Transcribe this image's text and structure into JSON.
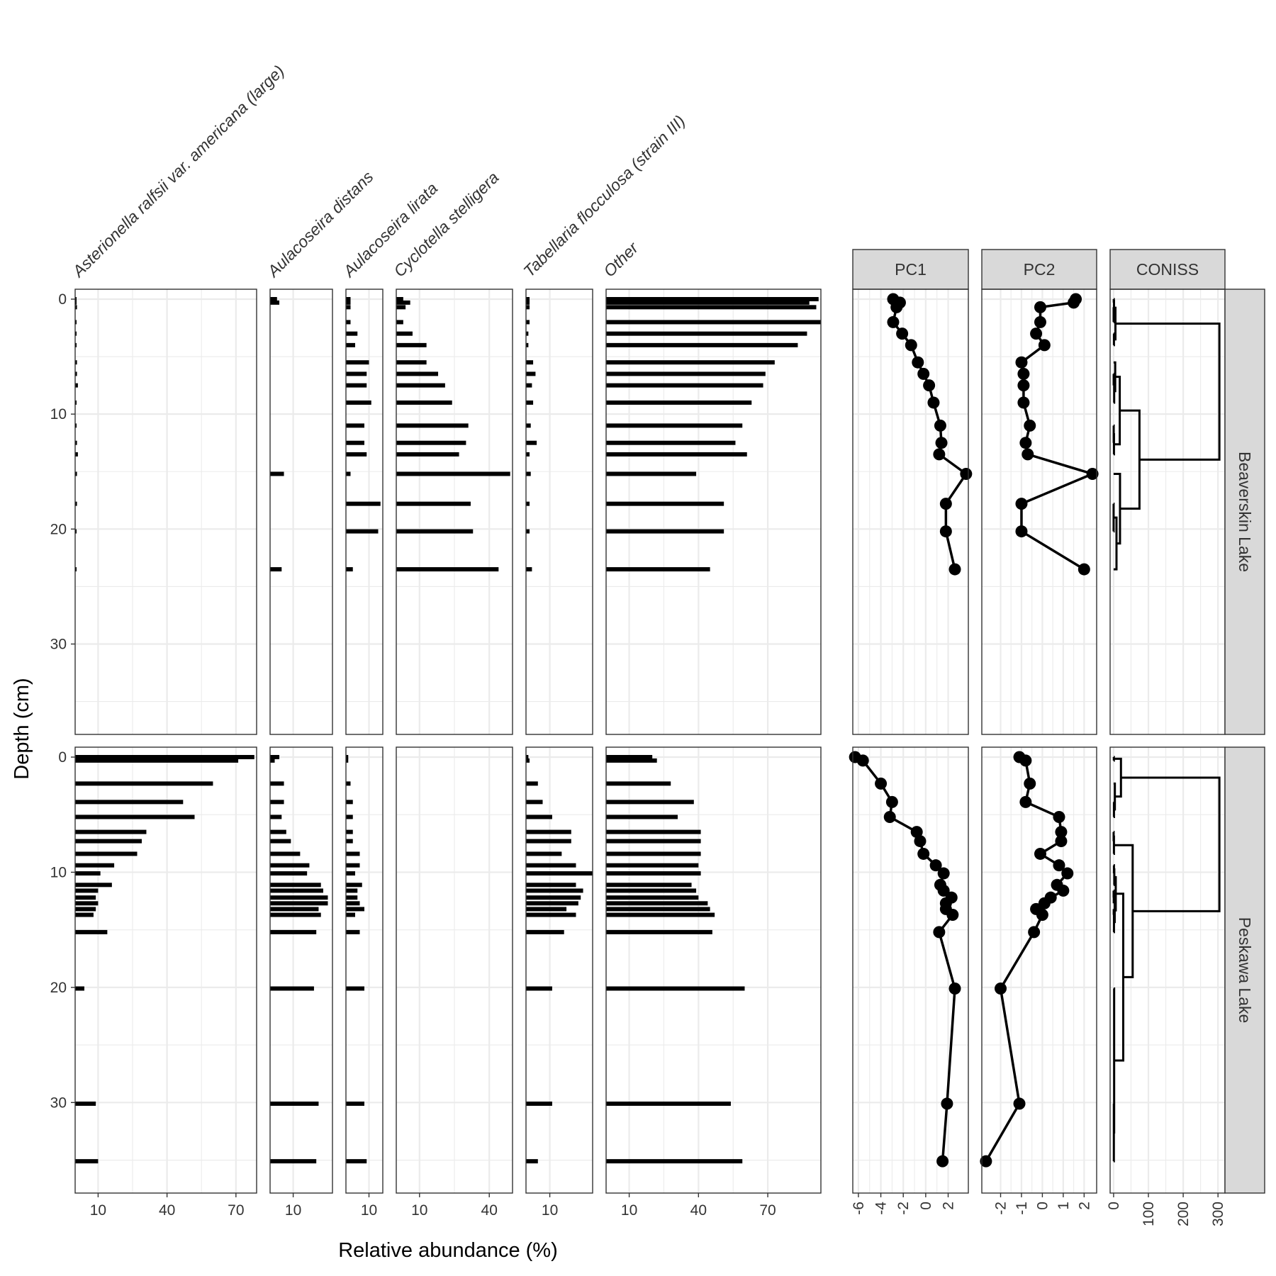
{
  "chart_data": {
    "type": "bar",
    "figure_kind": "stratigraphic diagram",
    "xlabel": "Relative abundance (%)",
    "ylabel": "Depth (cm)",
    "ylim": [
      0,
      37
    ],
    "y_reversed": true,
    "y_ticks": [
      0,
      10,
      20,
      30
    ],
    "grid": true,
    "taxa": [
      {
        "name": "Asterionella ralfsii var. americana (large)",
        "xlim": [
          0,
          79
        ],
        "ticks": [
          10,
          40,
          70
        ]
      },
      {
        "name": "Aulacoseira distans",
        "xlim": [
          0,
          27
        ],
        "ticks": [
          10
        ]
      },
      {
        "name": "Aulacoseira lirata",
        "xlim": [
          0,
          16
        ],
        "ticks": [
          10
        ]
      },
      {
        "name": "Cyclotella stelligera",
        "xlim": [
          0,
          50
        ],
        "ticks": [
          10,
          40
        ]
      },
      {
        "name": "Tabellaria flocculosa (strain III)",
        "xlim": [
          0,
          28
        ],
        "ticks": [
          10
        ]
      },
      {
        "name": "Other",
        "xlim": [
          0,
          93
        ],
        "ticks": [
          10,
          40,
          70
        ]
      }
    ],
    "sites": [
      {
        "name": "Beaverskin Lake",
        "depths": [
          0,
          0.3,
          0.7,
          2,
          3,
          4,
          5.5,
          6.5,
          7.5,
          9,
          11,
          12.5,
          13.5,
          15.2,
          17.8,
          20.2,
          23.5
        ],
        "abundance": [
          [
            0.5,
            0.5,
            0.8,
            0.2,
            0.2,
            0.2,
            0.8,
            0.8,
            1.2,
            0.3,
            0.5,
            0.8,
            1.2,
            0.8,
            0.8,
            0.5,
            0.5
          ],
          [
            3,
            4,
            0,
            0,
            0,
            0,
            0,
            0,
            0,
            0,
            0,
            0,
            0,
            6,
            0,
            0,
            5
          ],
          [
            2,
            2,
            2,
            2,
            5,
            4,
            10,
            9,
            9,
            11,
            8,
            8,
            9,
            2,
            15,
            14,
            3
          ],
          [
            3,
            6,
            4,
            3,
            7,
            13,
            13,
            18,
            21,
            24,
            31,
            30,
            27,
            49,
            32,
            33,
            44
          ],
          [
            1.5,
            1.5,
            1.5,
            1.5,
            1,
            1,
            3,
            4,
            2.5,
            3,
            2,
            4.5,
            1.5,
            2,
            1.5,
            1.5,
            2.5
          ],
          [
            92,
            88,
            91,
            93,
            87,
            83,
            73,
            69,
            68,
            63,
            59,
            56,
            61,
            39,
            51,
            51,
            45
          ]
        ],
        "pc1": [
          -2.9,
          -2.3,
          -2.6,
          -2.9,
          -2.1,
          -1.3,
          -0.7,
          -0.2,
          0.3,
          0.7,
          1.3,
          1.4,
          1.2,
          3.6,
          1.8,
          1.8,
          2.6
        ],
        "pc2": [
          1.6,
          1.5,
          -0.1,
          -0.1,
          -0.3,
          0.1,
          -1.0,
          -0.9,
          -0.9,
          -0.9,
          -0.6,
          -0.8,
          -0.7,
          2.4,
          -1.0,
          -1.0,
          2.0
        ],
        "coniss_max": 320
      },
      {
        "name": "Peskawa Lake",
        "depths": [
          0,
          0.3,
          2.3,
          3.9,
          5.2,
          6.5,
          7.3,
          8.4,
          9.4,
          10.1,
          11.1,
          11.6,
          12.2,
          12.7,
          13.2,
          13.7,
          15.2,
          20.1,
          30.1,
          35.1
        ],
        "abundance": [
          [
            78,
            71,
            60,
            47,
            52,
            31,
            29,
            27,
            17,
            11,
            16,
            10,
            9,
            10,
            9,
            8,
            14,
            4,
            9,
            10
          ],
          [
            4,
            2,
            6,
            6,
            5,
            7,
            9,
            13,
            17,
            16,
            22,
            23,
            25,
            25,
            21,
            22,
            20,
            19,
            21,
            20
          ],
          [
            1,
            1,
            2,
            3,
            3,
            3,
            3,
            6,
            6,
            4,
            7,
            5,
            5,
            6,
            8,
            4,
            6,
            8,
            8,
            9
          ],
          [
            0,
            0,
            0,
            0,
            0,
            0,
            0,
            0,
            0,
            0,
            0,
            0,
            0,
            0,
            0,
            0,
            0,
            0,
            0,
            0
          ],
          [
            1,
            1.5,
            5,
            7,
            11,
            19,
            19,
            15,
            21,
            28,
            21,
            24,
            23,
            22,
            17,
            21,
            16,
            11,
            11,
            5
          ],
          [
            20,
            22,
            28,
            38,
            31,
            41,
            41,
            41,
            40,
            41,
            37,
            39,
            40,
            44,
            45,
            47,
            46,
            60,
            54,
            59
          ]
        ],
        "pc1": [
          -6.3,
          -5.6,
          -4.0,
          -3.0,
          -3.2,
          -0.8,
          -0.5,
          -0.2,
          0.9,
          1.6,
          1.3,
          1.6,
          2.3,
          1.8,
          1.8,
          2.4,
          1.2,
          2.6,
          1.9,
          1.5
        ],
        "pc2": [
          -1.1,
          -0.8,
          -0.6,
          -0.8,
          0.8,
          0.9,
          0.9,
          -0.1,
          0.8,
          1.2,
          0.7,
          1.0,
          0.4,
          0.1,
          -0.3,
          0.0,
          -0.4,
          -2.0,
          -1.1,
          -2.7
        ],
        "coniss_max": 320
      }
    ],
    "pc1": {
      "label": "PC1",
      "xlim": [
        -6.5,
        3.8
      ],
      "ticks": [
        -6,
        -4,
        -2,
        0,
        2
      ]
    },
    "pc2": {
      "label": "PC2",
      "xlim": [
        -2.9,
        2.6
      ],
      "ticks": [
        -2,
        -1,
        0,
        1,
        2
      ]
    },
    "coniss": {
      "label": "CONISS",
      "xlim": [
        -10,
        320
      ],
      "ticks": [
        0,
        100,
        200,
        300
      ]
    }
  },
  "colors": {
    "bar": "#000000",
    "grid": "#ebebeb",
    "panel_border": "#333333",
    "strip_fill": "#d9d9d9",
    "tick_text": "#4d4d4d"
  }
}
